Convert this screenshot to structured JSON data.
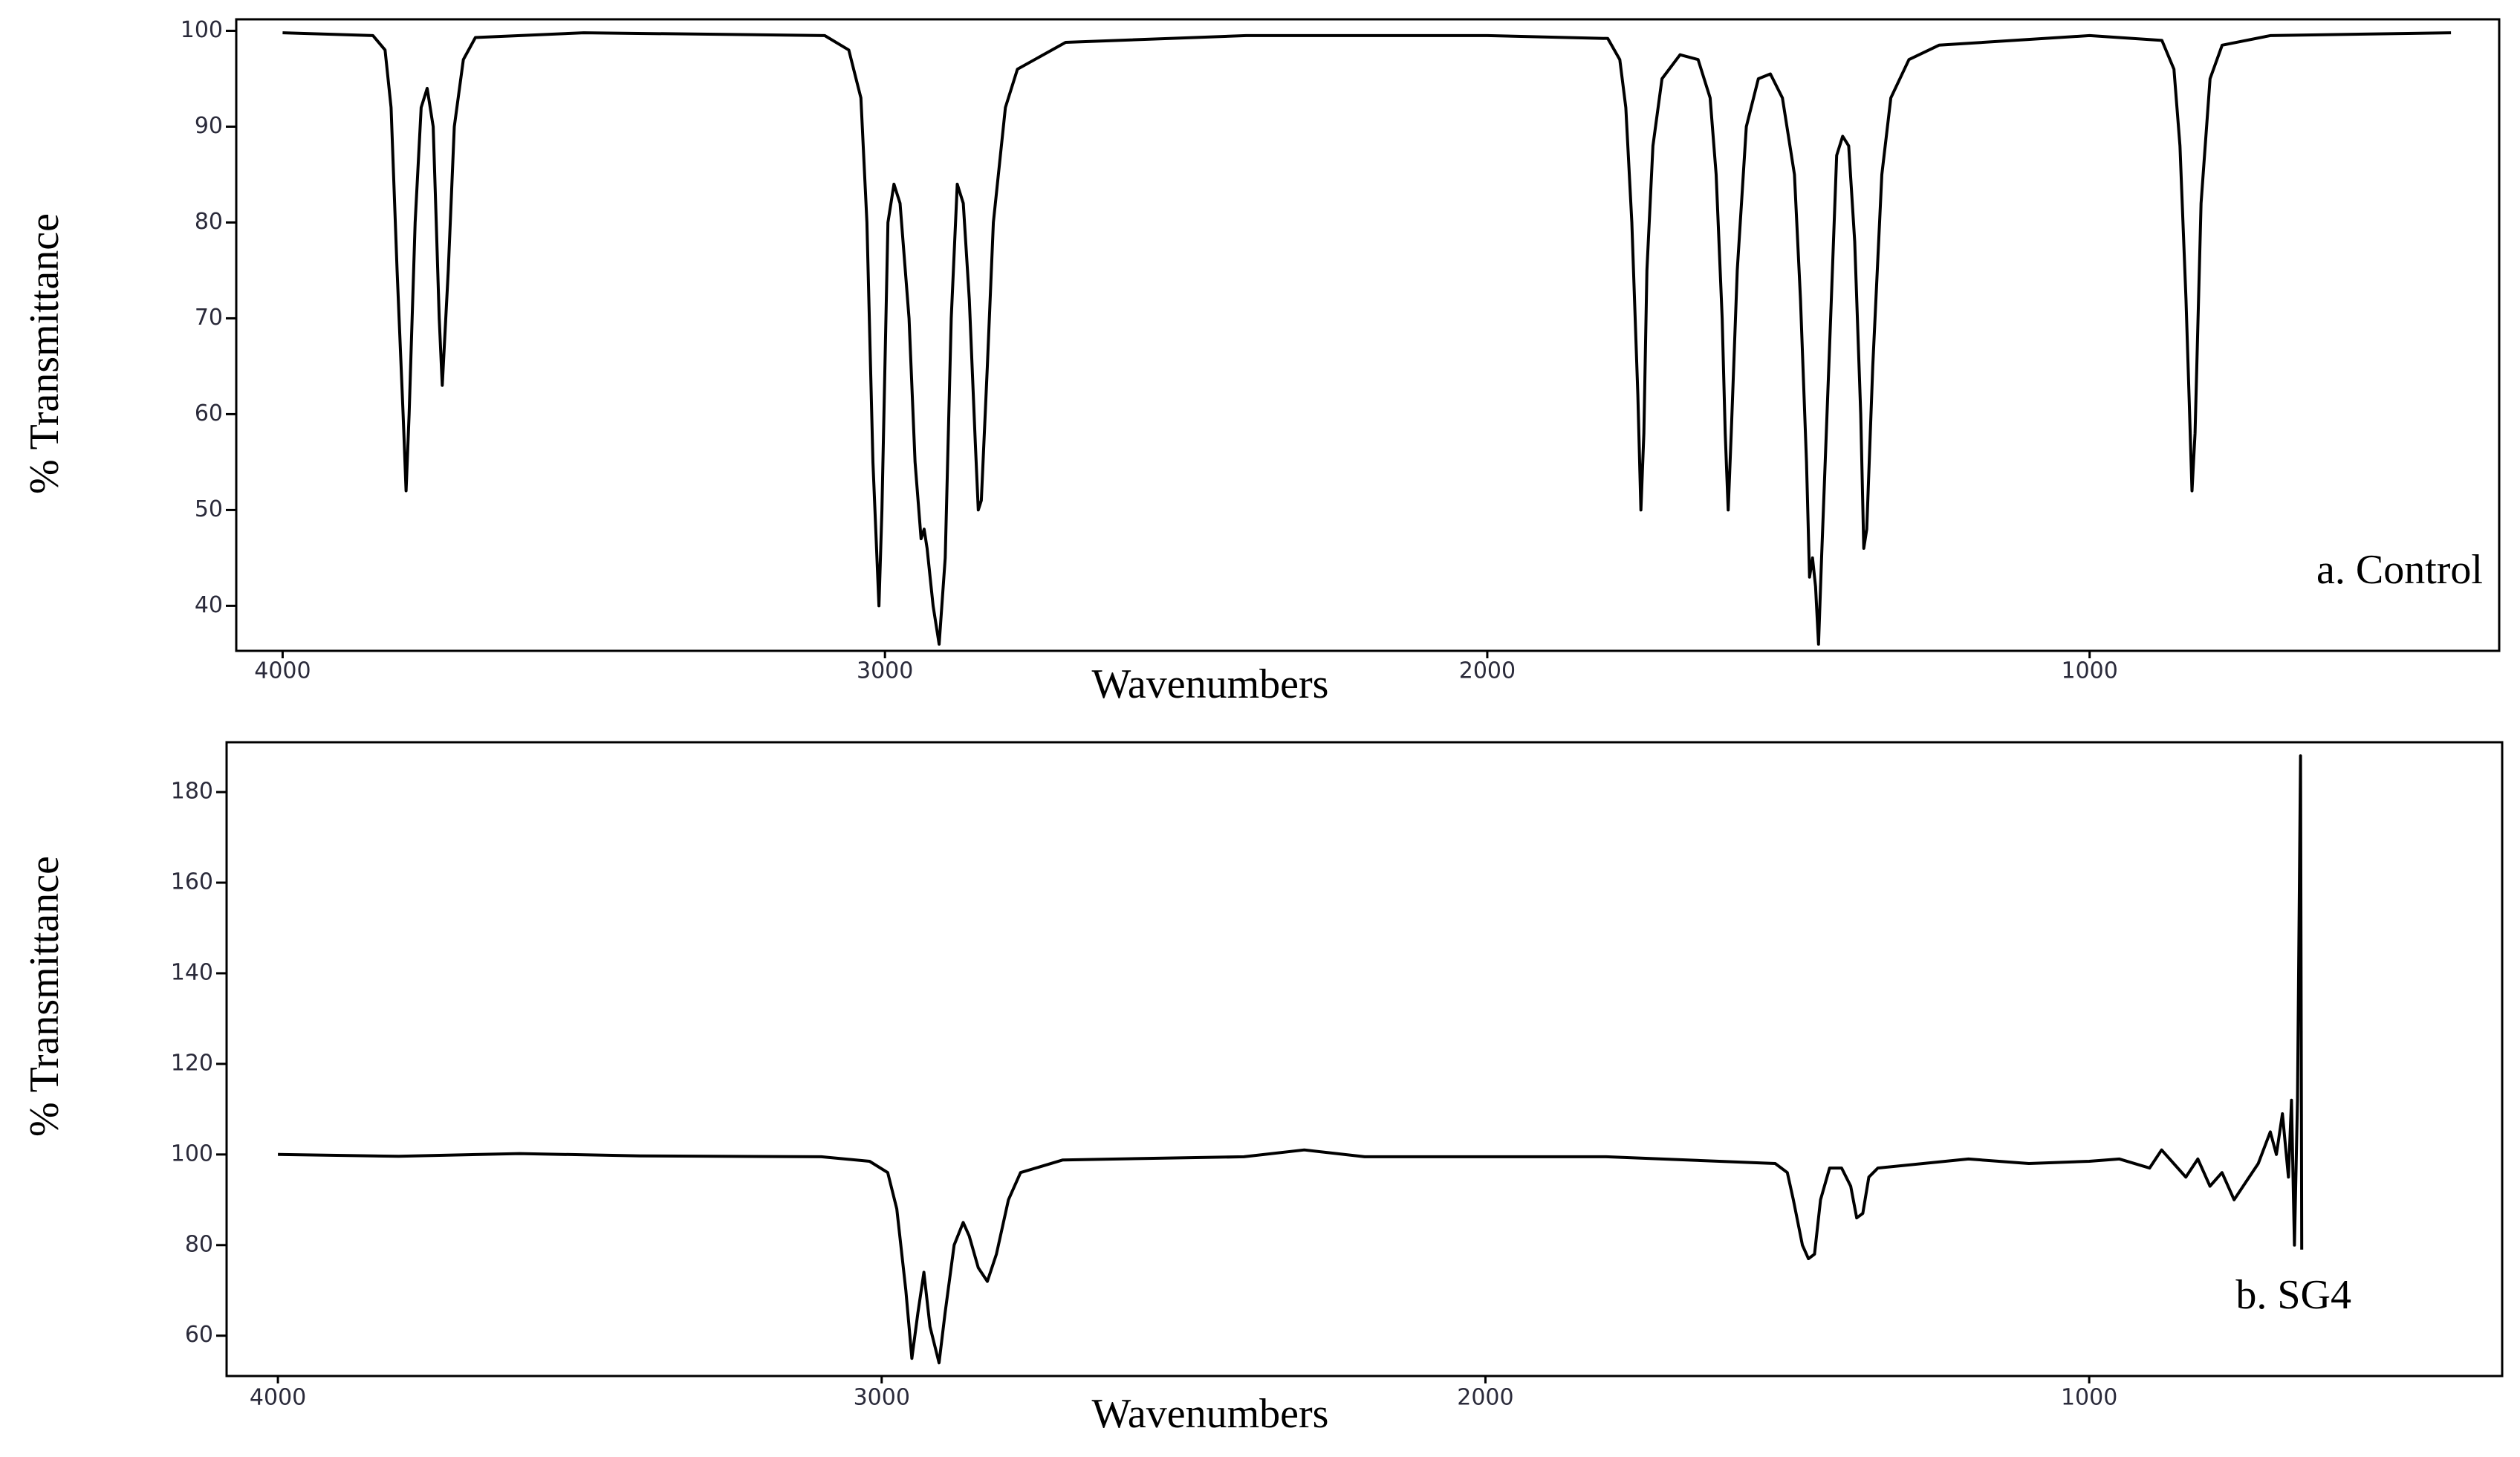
{
  "chart_data": [
    {
      "type": "line",
      "ylabel": "% Transmittance",
      "xlabel": "Wavenumbers",
      "annotation": "a. Control",
      "color": "#000000",
      "xlim": [
        4077,
        320
      ],
      "ylim": [
        35.3,
        101.2
      ],
      "xticks": [
        4000,
        3000,
        2000,
        1000
      ],
      "yticks": [
        40,
        50,
        60,
        70,
        80,
        90,
        100
      ],
      "x": [
        4000,
        3850,
        3830,
        3820,
        3810,
        3800,
        3795,
        3790,
        3780,
        3770,
        3760,
        3750,
        3745,
        3740,
        3735,
        3725,
        3715,
        3700,
        3680,
        3500,
        3100,
        3060,
        3040,
        3030,
        3020,
        3010,
        3005,
        2995,
        2985,
        2975,
        2960,
        2950,
        2940,
        2935,
        2930,
        2920,
        2910,
        2900,
        2890,
        2880,
        2870,
        2860,
        2850,
        2845,
        2840,
        2830,
        2820,
        2800,
        2780,
        2700,
        2400,
        2000,
        1800,
        1780,
        1770,
        1760,
        1750,
        1745,
        1740,
        1735,
        1725,
        1710,
        1680,
        1650,
        1630,
        1620,
        1610,
        1605,
        1600,
        1595,
        1585,
        1570,
        1550,
        1530,
        1510,
        1490,
        1480,
        1470,
        1465,
        1460,
        1455,
        1450,
        1445,
        1430,
        1420,
        1410,
        1400,
        1390,
        1380,
        1375,
        1370,
        1360,
        1345,
        1330,
        1300,
        1250,
        1000,
        880,
        860,
        850,
        840,
        835,
        830,
        825,
        815,
        800,
        780,
        700,
        400
      ],
      "values": [
        99.8,
        99.5,
        98,
        92,
        75,
        60,
        52,
        60,
        80,
        92,
        94,
        90,
        80,
        70,
        63,
        75,
        90,
        97,
        99.3,
        99.8,
        99.5,
        98,
        93,
        80,
        55,
        40,
        50,
        80,
        84,
        82,
        70,
        55,
        47,
        48,
        46,
        40,
        36,
        45,
        70,
        84,
        82,
        72,
        57,
        50,
        51,
        65,
        80,
        92,
        96,
        98.8,
        99.5,
        99.5,
        99.2,
        97,
        92,
        80,
        62,
        50,
        58,
        75,
        88,
        95,
        97.5,
        97,
        93,
        85,
        70,
        58,
        50,
        58,
        75,
        90,
        95,
        95.5,
        93,
        85,
        72,
        55,
        43,
        45,
        42,
        36,
        45,
        70,
        87,
        89,
        88,
        78,
        60,
        46,
        48,
        65,
        85,
        93,
        97,
        98.5,
        99.5,
        99,
        96,
        88,
        72,
        62,
        52,
        58,
        82,
        95,
        98.5,
        99.5,
        99.8
      ]
    },
    {
      "type": "line",
      "ylabel": "% Transmittance",
      "xlabel": "Wavenumbers",
      "annotation": "b. SG4",
      "color": "#000000",
      "xlim": [
        4085,
        316
      ],
      "ylim": [
        51.1,
        191
      ],
      "xticks": [
        4000,
        3000,
        2000,
        1000
      ],
      "yticks": [
        60,
        80,
        100,
        120,
        140,
        160,
        180
      ],
      "x": [
        4000,
        3800,
        3600,
        3400,
        3100,
        3020,
        2990,
        2975,
        2960,
        2950,
        2940,
        2930,
        2920,
        2905,
        2895,
        2880,
        2865,
        2855,
        2840,
        2825,
        2810,
        2790,
        2770,
        2700,
        2400,
        2300,
        2200,
        1800,
        1520,
        1500,
        1490,
        1475,
        1465,
        1455,
        1445,
        1430,
        1410,
        1395,
        1385,
        1375,
        1365,
        1350,
        1200,
        1100,
        1000,
        950,
        900,
        880,
        860,
        840,
        820,
        800,
        780,
        760,
        740,
        720,
        700,
        690,
        680,
        670,
        665,
        660,
        655,
        650,
        648
      ],
      "values": [
        100,
        99.6,
        100.2,
        99.7,
        99.5,
        98.5,
        96,
        88,
        70,
        55,
        65,
        74,
        62,
        54,
        65,
        80,
        85,
        82,
        75,
        72,
        78,
        90,
        96,
        98.8,
        99.5,
        101,
        99.5,
        99.5,
        98,
        96,
        90,
        80,
        77,
        78,
        90,
        97,
        97,
        93,
        86,
        87,
        95,
        97,
        99,
        98,
        98.5,
        99,
        97,
        101,
        98,
        95,
        99,
        93,
        96,
        90,
        94,
        98,
        105,
        100,
        109,
        95,
        112,
        80,
        112,
        188,
        79
      ]
    }
  ]
}
